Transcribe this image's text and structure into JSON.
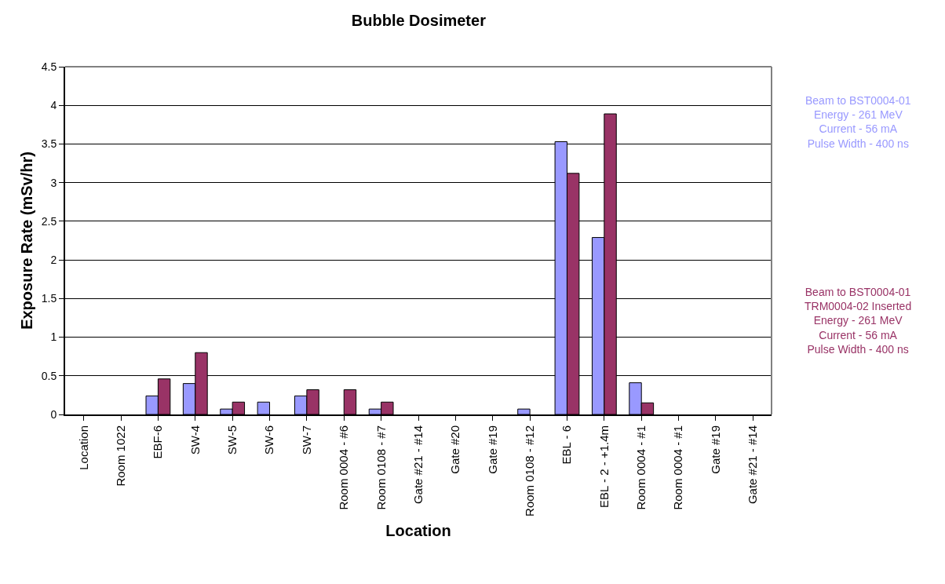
{
  "chart_data": {
    "type": "bar",
    "title": "Bubble Dosimeter",
    "xlabel": "Location",
    "ylabel": "Exposure Rate (mSv/hr)",
    "categories": [
      "Location",
      "Room 1022",
      "EBF-6",
      "SW-4",
      "SW-5",
      "SW-6",
      "SW-7",
      "Room 0004 - #6",
      "Room 0108 - #7",
      "Gate #21 - #14",
      "Gate #20",
      "Gate #19",
      "Room 0108 - #12",
      "EBL - 6",
      "EBL - 2 - +1.4m",
      "Room 0004 - #1",
      "Room 0004 - #1",
      "Gate #19",
      "Gate #21 - #14"
    ],
    "series": [
      {
        "name": "Beam to BST0004-01\nEnergy - 261 MeV\nCurrent - 56 mA\nPulse Width - 400 ns",
        "color": "#9999ff",
        "values": [
          null,
          null,
          0.24,
          0.4,
          0.07,
          0.16,
          0.24,
          null,
          0.07,
          null,
          null,
          null,
          0.07,
          3.53,
          2.29,
          0.41,
          null,
          null,
          null
        ]
      },
      {
        "name": "Beam to BST0004-01\nTRM0004-02 Inserted\nEnergy - 261 MeV\nCurrent - 56 mA\nPulse Width - 400 ns",
        "color": "#993366",
        "values": [
          null,
          null,
          0.46,
          0.8,
          0.16,
          null,
          0.32,
          0.32,
          0.16,
          null,
          null,
          null,
          null,
          3.12,
          3.89,
          0.15,
          null,
          null,
          null
        ]
      }
    ],
    "ylim": [
      0,
      4.5
    ],
    "yticks": [
      0,
      0.5,
      1,
      1.5,
      2,
      2.5,
      3,
      3.5,
      4,
      4.5
    ],
    "grid": "y"
  }
}
